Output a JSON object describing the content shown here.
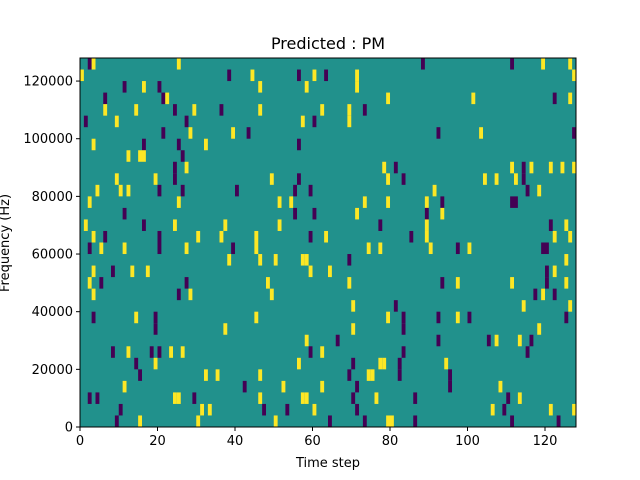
{
  "chart_data": {
    "type": "heatmap",
    "title": "Predicted : PM",
    "xlabel": "Time step",
    "ylabel": "Frequency (Hz)",
    "xlim": [
      0,
      128
    ],
    "ylim": [
      0,
      128000
    ],
    "xticks": [
      0,
      20,
      40,
      60,
      80,
      100,
      120
    ],
    "yticks": [
      0,
      20000,
      40000,
      60000,
      80000,
      100000,
      120000
    ],
    "grid": false,
    "colormap": "viridis",
    "colors": {
      "background": "#21918c",
      "low": "#440154",
      "high": "#fde725"
    },
    "background_value": 0,
    "cell_height": 4000,
    "cells": [
      {
        "t": 2,
        "f": 124000,
        "v": -1
      },
      {
        "t": 3,
        "f": 124000,
        "v": 1
      },
      {
        "t": 25,
        "f": 124000,
        "v": 1
      },
      {
        "t": 88,
        "f": 124000,
        "v": -1
      },
      {
        "t": 111,
        "f": 124000,
        "v": -1
      },
      {
        "t": 119,
        "f": 124000,
        "v": 1
      },
      {
        "t": 126,
        "f": 124000,
        "v": 1
      },
      {
        "t": 0,
        "f": 120000,
        "v": 1
      },
      {
        "t": 38,
        "f": 120000,
        "v": -1
      },
      {
        "t": 44,
        "f": 120000,
        "v": 1
      },
      {
        "t": 56,
        "f": 120000,
        "v": -1
      },
      {
        "t": 60,
        "f": 120000,
        "v": 1
      },
      {
        "t": 63,
        "f": 120000,
        "v": -1
      },
      {
        "t": 71,
        "f": 120000,
        "v": 1
      },
      {
        "t": 127,
        "f": 120000,
        "v": 1
      },
      {
        "t": 11,
        "f": 116000,
        "v": -1
      },
      {
        "t": 16,
        "f": 116000,
        "v": 1
      },
      {
        "t": 20,
        "f": 116000,
        "v": -1
      },
      {
        "t": 46,
        "f": 116000,
        "v": 1
      },
      {
        "t": 58,
        "f": 116000,
        "v": 1
      },
      {
        "t": 71,
        "f": 116000,
        "v": 1
      },
      {
        "t": 6,
        "f": 112000,
        "v": -1
      },
      {
        "t": 21,
        "f": 112000,
        "v": -1
      },
      {
        "t": 22,
        "f": 112000,
        "v": 1
      },
      {
        "t": 79,
        "f": 112000,
        "v": 1
      },
      {
        "t": 101,
        "f": 112000,
        "v": 1
      },
      {
        "t": 122,
        "f": 112000,
        "v": -1
      },
      {
        "t": 126,
        "f": 112000,
        "v": 1
      },
      {
        "t": 6,
        "f": 108000,
        "v": 1
      },
      {
        "t": 14,
        "f": 108000,
        "v": 1
      },
      {
        "t": 24,
        "f": 108000,
        "v": -1
      },
      {
        "t": 29,
        "f": 108000,
        "v": 1
      },
      {
        "t": 36,
        "f": 108000,
        "v": -1
      },
      {
        "t": 46,
        "f": 108000,
        "v": 1
      },
      {
        "t": 62,
        "f": 108000,
        "v": 1
      },
      {
        "t": 69,
        "f": 108000,
        "v": 1
      },
      {
        "t": 73,
        "f": 108000,
        "v": -1
      },
      {
        "t": 1,
        "f": 104000,
        "v": -1
      },
      {
        "t": 9,
        "f": 104000,
        "v": 1
      },
      {
        "t": 27,
        "f": 104000,
        "v": -1
      },
      {
        "t": 57,
        "f": 104000,
        "v": 1
      },
      {
        "t": 60,
        "f": 104000,
        "v": -1
      },
      {
        "t": 69,
        "f": 104000,
        "v": 1
      },
      {
        "t": 21,
        "f": 100000,
        "v": -1
      },
      {
        "t": 28,
        "f": 100000,
        "v": 1
      },
      {
        "t": 39,
        "f": 100000,
        "v": 1
      },
      {
        "t": 43,
        "f": 100000,
        "v": -1
      },
      {
        "t": 92,
        "f": 100000,
        "v": -1
      },
      {
        "t": 103,
        "f": 100000,
        "v": 1
      },
      {
        "t": 127,
        "f": 100000,
        "v": -1
      },
      {
        "t": 3,
        "f": 96000,
        "v": 1
      },
      {
        "t": 16,
        "f": 96000,
        "v": -1
      },
      {
        "t": 25,
        "f": 96000,
        "v": -1
      },
      {
        "t": 32,
        "f": 96000,
        "v": 1
      },
      {
        "t": 56,
        "f": 96000,
        "v": -1
      },
      {
        "t": 12,
        "f": 92000,
        "v": 1
      },
      {
        "t": 15,
        "f": 92000,
        "v": 1
      },
      {
        "t": 16,
        "f": 92000,
        "v": 1
      },
      {
        "t": 26,
        "f": 92000,
        "v": -1
      },
      {
        "t": 24,
        "f": 88000,
        "v": -1
      },
      {
        "t": 27,
        "f": 88000,
        "v": 1
      },
      {
        "t": 78,
        "f": 88000,
        "v": 1
      },
      {
        "t": 81,
        "f": 88000,
        "v": -1
      },
      {
        "t": 111,
        "f": 88000,
        "v": 1
      },
      {
        "t": 114,
        "f": 88000,
        "v": -1
      },
      {
        "t": 116,
        "f": 88000,
        "v": 1
      },
      {
        "t": 121,
        "f": 88000,
        "v": 1
      },
      {
        "t": 124,
        "f": 88000,
        "v": 1
      },
      {
        "t": 127,
        "f": 88000,
        "v": 1
      },
      {
        "t": 9,
        "f": 84000,
        "v": 1
      },
      {
        "t": 19,
        "f": 84000,
        "v": 1
      },
      {
        "t": 24,
        "f": 84000,
        "v": -1
      },
      {
        "t": 49,
        "f": 84000,
        "v": 1
      },
      {
        "t": 56,
        "f": 84000,
        "v": -1
      },
      {
        "t": 79,
        "f": 84000,
        "v": 1
      },
      {
        "t": 83,
        "f": 84000,
        "v": -1
      },
      {
        "t": 104,
        "f": 84000,
        "v": 1
      },
      {
        "t": 107,
        "f": 84000,
        "v": 1
      },
      {
        "t": 112,
        "f": 84000,
        "v": 1
      },
      {
        "t": 114,
        "f": 84000,
        "v": -1
      },
      {
        "t": 4,
        "f": 80000,
        "v": 1
      },
      {
        "t": 10,
        "f": 80000,
        "v": 1
      },
      {
        "t": 12,
        "f": 80000,
        "v": 1
      },
      {
        "t": 20,
        "f": 80000,
        "v": -1
      },
      {
        "t": 26,
        "f": 80000,
        "v": -1
      },
      {
        "t": 40,
        "f": 80000,
        "v": -1
      },
      {
        "t": 55,
        "f": 80000,
        "v": -1
      },
      {
        "t": 59,
        "f": 80000,
        "v": -1
      },
      {
        "t": 91,
        "f": 80000,
        "v": 1
      },
      {
        "t": 115,
        "f": 80000,
        "v": -1
      },
      {
        "t": 118,
        "f": 80000,
        "v": 1
      },
      {
        "t": 2,
        "f": 76000,
        "v": 1
      },
      {
        "t": 25,
        "f": 76000,
        "v": 1
      },
      {
        "t": 51,
        "f": 76000,
        "v": 1
      },
      {
        "t": 54,
        "f": 76000,
        "v": 1
      },
      {
        "t": 73,
        "f": 76000,
        "v": 1
      },
      {
        "t": 79,
        "f": 76000,
        "v": 1
      },
      {
        "t": 89,
        "f": 76000,
        "v": 1
      },
      {
        "t": 93,
        "f": 76000,
        "v": -1
      },
      {
        "t": 111,
        "f": 76000,
        "v": -1
      },
      {
        "t": 112,
        "f": 76000,
        "v": -1
      },
      {
        "t": 11,
        "f": 72000,
        "v": -1
      },
      {
        "t": 55,
        "f": 72000,
        "v": -1
      },
      {
        "t": 60,
        "f": 72000,
        "v": -1
      },
      {
        "t": 71,
        "f": 72000,
        "v": 1
      },
      {
        "t": 89,
        "f": 72000,
        "v": -1
      },
      {
        "t": 93,
        "f": 72000,
        "v": 1
      },
      {
        "t": 1,
        "f": 68000,
        "v": 1
      },
      {
        "t": 16,
        "f": 68000,
        "v": -1
      },
      {
        "t": 24,
        "f": 68000,
        "v": 1
      },
      {
        "t": 37,
        "f": 68000,
        "v": 1
      },
      {
        "t": 51,
        "f": 68000,
        "v": 1
      },
      {
        "t": 77,
        "f": 68000,
        "v": -1
      },
      {
        "t": 89,
        "f": 68000,
        "v": 1
      },
      {
        "t": 121,
        "f": 68000,
        "v": -1
      },
      {
        "t": 125,
        "f": 68000,
        "v": 1
      },
      {
        "t": 3,
        "f": 64000,
        "v": 1
      },
      {
        "t": 6,
        "f": 64000,
        "v": -1
      },
      {
        "t": 20,
        "f": 64000,
        "v": -1
      },
      {
        "t": 30,
        "f": 64000,
        "v": 1
      },
      {
        "t": 36,
        "f": 64000,
        "v": 1
      },
      {
        "t": 45,
        "f": 64000,
        "v": 1
      },
      {
        "t": 59,
        "f": 64000,
        "v": -1
      },
      {
        "t": 63,
        "f": 64000,
        "v": 1
      },
      {
        "t": 85,
        "f": 64000,
        "v": -1
      },
      {
        "t": 89,
        "f": 64000,
        "v": 1
      },
      {
        "t": 122,
        "f": 64000,
        "v": 1
      },
      {
        "t": 126,
        "f": 64000,
        "v": 1
      },
      {
        "t": 2,
        "f": 60000,
        "v": -1
      },
      {
        "t": 5,
        "f": 60000,
        "v": 1
      },
      {
        "t": 11,
        "f": 60000,
        "v": 1
      },
      {
        "t": 20,
        "f": 60000,
        "v": -1
      },
      {
        "t": 27,
        "f": 60000,
        "v": 1
      },
      {
        "t": 39,
        "f": 60000,
        "v": -1
      },
      {
        "t": 45,
        "f": 60000,
        "v": 1
      },
      {
        "t": 74,
        "f": 60000,
        "v": 1
      },
      {
        "t": 77,
        "f": 60000,
        "v": 1
      },
      {
        "t": 90,
        "f": 60000,
        "v": 1
      },
      {
        "t": 97,
        "f": 60000,
        "v": -1
      },
      {
        "t": 100,
        "f": 60000,
        "v": 1
      },
      {
        "t": 119,
        "f": 60000,
        "v": -1
      },
      {
        "t": 120,
        "f": 60000,
        "v": -1
      },
      {
        "t": 38,
        "f": 56000,
        "v": 1
      },
      {
        "t": 46,
        "f": 56000,
        "v": 1
      },
      {
        "t": 50,
        "f": 56000,
        "v": 1
      },
      {
        "t": 57,
        "f": 56000,
        "v": 1
      },
      {
        "t": 58,
        "f": 56000,
        "v": 1
      },
      {
        "t": 69,
        "f": 56000,
        "v": -1
      },
      {
        "t": 125,
        "f": 56000,
        "v": 1
      },
      {
        "t": 3,
        "f": 52000,
        "v": 1
      },
      {
        "t": 8,
        "f": 52000,
        "v": -1
      },
      {
        "t": 13,
        "f": 52000,
        "v": 1
      },
      {
        "t": 17,
        "f": 52000,
        "v": 1
      },
      {
        "t": 59,
        "f": 52000,
        "v": 1
      },
      {
        "t": 64,
        "f": 52000,
        "v": 1
      },
      {
        "t": 120,
        "f": 52000,
        "v": -1
      },
      {
        "t": 122,
        "f": 52000,
        "v": 1
      },
      {
        "t": 2,
        "f": 48000,
        "v": 1
      },
      {
        "t": 5,
        "f": 48000,
        "v": -1
      },
      {
        "t": 27,
        "f": 48000,
        "v": -1
      },
      {
        "t": 48,
        "f": 48000,
        "v": 1
      },
      {
        "t": 69,
        "f": 48000,
        "v": 1
      },
      {
        "t": 93,
        "f": 48000,
        "v": -1
      },
      {
        "t": 97,
        "f": 48000,
        "v": 1
      },
      {
        "t": 111,
        "f": 48000,
        "v": 1
      },
      {
        "t": 120,
        "f": 48000,
        "v": -1
      },
      {
        "t": 125,
        "f": 48000,
        "v": 1
      },
      {
        "t": 3,
        "f": 44000,
        "v": 1
      },
      {
        "t": 25,
        "f": 44000,
        "v": -1
      },
      {
        "t": 28,
        "f": 44000,
        "v": 1
      },
      {
        "t": 49,
        "f": 44000,
        "v": 1
      },
      {
        "t": 117,
        "f": 44000,
        "v": -1
      },
      {
        "t": 119,
        "f": 44000,
        "v": 1
      },
      {
        "t": 122,
        "f": 44000,
        "v": -1
      },
      {
        "t": 70,
        "f": 40000,
        "v": 1
      },
      {
        "t": 81,
        "f": 40000,
        "v": -1
      },
      {
        "t": 114,
        "f": 40000,
        "v": 1
      },
      {
        "t": 126,
        "f": 40000,
        "v": 1
      },
      {
        "t": 3,
        "f": 36000,
        "v": -1
      },
      {
        "t": 14,
        "f": 36000,
        "v": 1
      },
      {
        "t": 19,
        "f": 36000,
        "v": -1
      },
      {
        "t": 45,
        "f": 36000,
        "v": 1
      },
      {
        "t": 79,
        "f": 36000,
        "v": 1
      },
      {
        "t": 83,
        "f": 36000,
        "v": -1
      },
      {
        "t": 92,
        "f": 36000,
        "v": -1
      },
      {
        "t": 97,
        "f": 36000,
        "v": 1
      },
      {
        "t": 100,
        "f": 36000,
        "v": -1
      },
      {
        "t": 125,
        "f": 36000,
        "v": -1
      },
      {
        "t": 19,
        "f": 32000,
        "v": -1
      },
      {
        "t": 37,
        "f": 32000,
        "v": 1
      },
      {
        "t": 70,
        "f": 32000,
        "v": 1
      },
      {
        "t": 83,
        "f": 32000,
        "v": -1
      },
      {
        "t": 118,
        "f": 32000,
        "v": 1
      },
      {
        "t": 58,
        "f": 28000,
        "v": 1
      },
      {
        "t": 66,
        "f": 28000,
        "v": -1
      },
      {
        "t": 92,
        "f": 28000,
        "v": -1
      },
      {
        "t": 105,
        "f": 28000,
        "v": -1
      },
      {
        "t": 107,
        "f": 28000,
        "v": 1
      },
      {
        "t": 113,
        "f": 28000,
        "v": 1
      },
      {
        "t": 116,
        "f": 28000,
        "v": -1
      },
      {
        "t": 8,
        "f": 24000,
        "v": -1
      },
      {
        "t": 12,
        "f": 24000,
        "v": 1
      },
      {
        "t": 18,
        "f": 24000,
        "v": -1
      },
      {
        "t": 20,
        "f": 24000,
        "v": -1
      },
      {
        "t": 23,
        "f": 24000,
        "v": 1
      },
      {
        "t": 26,
        "f": 24000,
        "v": 1
      },
      {
        "t": 59,
        "f": 24000,
        "v": -1
      },
      {
        "t": 62,
        "f": 24000,
        "v": 1
      },
      {
        "t": 83,
        "f": 24000,
        "v": -1
      },
      {
        "t": 115,
        "f": 24000,
        "v": -1
      },
      {
        "t": 14,
        "f": 20000,
        "v": -1
      },
      {
        "t": 19,
        "f": 20000,
        "v": 1
      },
      {
        "t": 56,
        "f": 20000,
        "v": 1
      },
      {
        "t": 70,
        "f": 20000,
        "v": -1
      },
      {
        "t": 77,
        "f": 20000,
        "v": 1
      },
      {
        "t": 78,
        "f": 20000,
        "v": 1
      },
      {
        "t": 82,
        "f": 20000,
        "v": -1
      },
      {
        "t": 94,
        "f": 20000,
        "v": 1
      },
      {
        "t": 15,
        "f": 16000,
        "v": -1
      },
      {
        "t": 32,
        "f": 16000,
        "v": 1
      },
      {
        "t": 35,
        "f": 16000,
        "v": 1
      },
      {
        "t": 46,
        "f": 16000,
        "v": 1
      },
      {
        "t": 69,
        "f": 16000,
        "v": -1
      },
      {
        "t": 74,
        "f": 16000,
        "v": 1
      },
      {
        "t": 75,
        "f": 16000,
        "v": 1
      },
      {
        "t": 82,
        "f": 16000,
        "v": -1
      },
      {
        "t": 95,
        "f": 16000,
        "v": -1
      },
      {
        "t": 11,
        "f": 12000,
        "v": 1
      },
      {
        "t": 42,
        "f": 12000,
        "v": -1
      },
      {
        "t": 52,
        "f": 12000,
        "v": 1
      },
      {
        "t": 62,
        "f": 12000,
        "v": 1
      },
      {
        "t": 71,
        "f": 12000,
        "v": -1
      },
      {
        "t": 95,
        "f": 12000,
        "v": -1
      },
      {
        "t": 108,
        "f": 12000,
        "v": 1
      },
      {
        "t": 2,
        "f": 8000,
        "v": -1
      },
      {
        "t": 4,
        "f": 8000,
        "v": -1
      },
      {
        "t": 24,
        "f": 8000,
        "v": 1
      },
      {
        "t": 25,
        "f": 8000,
        "v": 1
      },
      {
        "t": 29,
        "f": 8000,
        "v": -1
      },
      {
        "t": 46,
        "f": 8000,
        "v": 1
      },
      {
        "t": 57,
        "f": 8000,
        "v": 1
      },
      {
        "t": 58,
        "f": 8000,
        "v": 1
      },
      {
        "t": 70,
        "f": 8000,
        "v": -1
      },
      {
        "t": 76,
        "f": 8000,
        "v": 1
      },
      {
        "t": 86,
        "f": 8000,
        "v": -1
      },
      {
        "t": 110,
        "f": 8000,
        "v": -1
      },
      {
        "t": 113,
        "f": 8000,
        "v": 1
      },
      {
        "t": 10,
        "f": 4000,
        "v": -1
      },
      {
        "t": 31,
        "f": 4000,
        "v": 1
      },
      {
        "t": 33,
        "f": 4000,
        "v": 1
      },
      {
        "t": 47,
        "f": 4000,
        "v": -1
      },
      {
        "t": 53,
        "f": 4000,
        "v": -1
      },
      {
        "t": 60,
        "f": 4000,
        "v": 1
      },
      {
        "t": 71,
        "f": 4000,
        "v": -1
      },
      {
        "t": 106,
        "f": 4000,
        "v": 1
      },
      {
        "t": 109,
        "f": 4000,
        "v": -1
      },
      {
        "t": 121,
        "f": 4000,
        "v": 1
      },
      {
        "t": 127,
        "f": 4000,
        "v": 1
      },
      {
        "t": 9,
        "f": 0,
        "v": -1
      },
      {
        "t": 15,
        "f": 0,
        "v": 1
      },
      {
        "t": 30,
        "f": 0,
        "v": 1
      },
      {
        "t": 50,
        "f": 0,
        "v": 1
      },
      {
        "t": 64,
        "f": 0,
        "v": -1
      },
      {
        "t": 73,
        "f": 0,
        "v": -1
      },
      {
        "t": 79,
        "f": 0,
        "v": 1
      },
      {
        "t": 80,
        "f": 0,
        "v": 1
      },
      {
        "t": 86,
        "f": 0,
        "v": -1
      },
      {
        "t": 111,
        "f": 0,
        "v": -1
      },
      {
        "t": 123,
        "f": 0,
        "v": -1
      }
    ]
  }
}
